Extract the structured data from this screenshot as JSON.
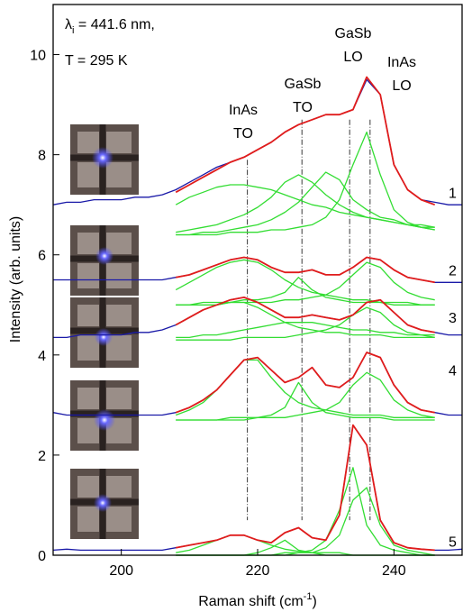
{
  "chart_data": {
    "type": "line",
    "x_label": {
      "main": "Raman shift (cm",
      "sup": "-1",
      "end": ")"
    },
    "y_label": "Intensity (arb. units)",
    "xlim": [
      190,
      250
    ],
    "ylim": [
      0,
      11
    ],
    "xticks": [
      200,
      220,
      240
    ],
    "yticks": [
      0,
      2,
      4,
      6,
      8,
      10
    ],
    "annotations": {
      "lambda": "λ",
      "lambda_sub": "i",
      "lambda_rest": " = 441.6 nm,",
      "temperature": "T = 295 K",
      "inas_to": [
        "InAs",
        "TO"
      ],
      "gasb_to": [
        "GaSb",
        "TO"
      ],
      "gasb_lo": [
        "GaSb",
        "LO"
      ],
      "inas_lo": [
        "InAs",
        "LO"
      ]
    },
    "reference_lines": [
      218.5,
      226.5,
      233.5,
      236.5
    ],
    "spectrum_labels": [
      "1",
      "2",
      "3",
      "4",
      "5"
    ],
    "x": [
      190,
      192,
      194,
      196,
      198,
      200,
      202,
      204,
      206,
      208,
      210,
      212,
      214,
      216,
      218,
      220,
      222,
      224,
      226,
      228,
      230,
      232,
      234,
      236,
      238,
      240,
      242,
      244,
      246,
      248,
      250
    ],
    "series": [
      {
        "color": "#1a1aa8",
        "values": [
          7.0,
          7.05,
          7.05,
          7.1,
          7.1,
          7.1,
          7.15,
          7.15,
          7.2,
          7.3,
          7.45,
          7.6,
          7.75,
          7.85,
          7.95,
          8.1,
          8.25,
          8.45,
          8.6,
          8.7,
          8.8,
          8.8,
          8.9,
          9.5,
          9.2,
          7.8,
          7.3,
          7.1,
          7.05,
          7.0,
          7.0
        ]
      },
      {
        "color": "#1a1aa8",
        "values": [
          5.5,
          5.5,
          5.5,
          5.5,
          5.5,
          5.5,
          5.5,
          5.5,
          5.5,
          5.55,
          5.6,
          5.7,
          5.8,
          5.9,
          5.95,
          5.9,
          5.75,
          5.65,
          5.65,
          5.7,
          5.6,
          5.6,
          5.75,
          5.95,
          5.9,
          5.7,
          5.55,
          5.5,
          5.45,
          5.45,
          5.45
        ]
      },
      {
        "color": "#1a1aa8",
        "values": [
          4.35,
          4.35,
          4.4,
          4.4,
          4.4,
          4.4,
          4.45,
          4.45,
          4.5,
          4.6,
          4.75,
          4.9,
          5.0,
          5.1,
          5.15,
          5.05,
          4.9,
          4.75,
          4.75,
          4.8,
          4.75,
          4.7,
          4.8,
          5.05,
          5.1,
          4.85,
          4.6,
          4.5,
          4.45,
          4.4,
          4.4
        ]
      },
      {
        "color": "#1a1aa8",
        "values": [
          2.85,
          2.8,
          2.8,
          2.8,
          2.8,
          2.8,
          2.8,
          2.8,
          2.8,
          2.85,
          2.95,
          3.1,
          3.3,
          3.6,
          3.9,
          3.95,
          3.7,
          3.45,
          3.55,
          3.75,
          3.4,
          3.35,
          3.55,
          4.05,
          3.95,
          3.4,
          3.05,
          2.9,
          2.85,
          2.8,
          2.8
        ]
      },
      {
        "color": "#1a1aa8",
        "values": [
          0.1,
          0.12,
          0.1,
          0.1,
          0.1,
          0.1,
          0.1,
          0.1,
          0.1,
          0.15,
          0.2,
          0.25,
          0.3,
          0.4,
          0.4,
          0.3,
          0.25,
          0.45,
          0.55,
          0.35,
          0.3,
          0.8,
          2.6,
          2.2,
          0.7,
          0.25,
          0.15,
          0.12,
          0.1,
          0.1,
          0.12
        ]
      },
      {
        "color": "#33dd33",
        "values": [
          null,
          null,
          null,
          null,
          null,
          null,
          null,
          null,
          null,
          7.0,
          7.15,
          7.25,
          7.35,
          7.4,
          7.4,
          7.35,
          7.3,
          7.2,
          7.1,
          7.0,
          6.95,
          6.85,
          6.8,
          6.75,
          6.7,
          6.65,
          6.6,
          6.6,
          6.55,
          null,
          null
        ]
      },
      {
        "color": "#33dd33",
        "values": [
          null,
          null,
          null,
          null,
          null,
          null,
          null,
          null,
          null,
          6.45,
          6.5,
          6.55,
          6.6,
          6.7,
          6.8,
          6.95,
          7.15,
          7.45,
          7.6,
          7.45,
          7.2,
          7.0,
          6.85,
          6.75,
          6.7,
          6.65,
          6.6,
          6.55,
          6.55,
          null,
          null
        ]
      },
      {
        "color": "#33dd33",
        "values": [
          null,
          null,
          null,
          null,
          null,
          null,
          null,
          null,
          null,
          6.4,
          6.4,
          6.45,
          6.45,
          6.5,
          6.55,
          6.6,
          6.7,
          6.85,
          7.05,
          7.35,
          7.65,
          7.5,
          7.1,
          6.9,
          6.75,
          6.7,
          6.6,
          6.55,
          6.5,
          null,
          null
        ]
      },
      {
        "color": "#33dd33",
        "values": [
          null,
          null,
          null,
          null,
          null,
          null,
          null,
          null,
          null,
          6.4,
          6.4,
          6.4,
          6.4,
          6.45,
          6.45,
          6.45,
          6.5,
          6.5,
          6.55,
          6.6,
          6.75,
          7.1,
          7.8,
          8.45,
          7.6,
          6.9,
          6.65,
          6.55,
          6.5,
          null,
          null
        ]
      },
      {
        "color": "#33dd33",
        "values": [
          null,
          null,
          null,
          null,
          null,
          null,
          null,
          null,
          null,
          5.3,
          5.45,
          5.6,
          5.75,
          5.85,
          5.9,
          5.85,
          5.7,
          5.5,
          5.35,
          5.25,
          5.2,
          5.15,
          5.1,
          5.1,
          5.05,
          5.05,
          5.05,
          5.0,
          5.0,
          null,
          null
        ]
      },
      {
        "color": "#33dd33",
        "values": [
          null,
          null,
          null,
          null,
          null,
          null,
          null,
          null,
          null,
          5.0,
          5.0,
          5.05,
          5.05,
          5.05,
          5.1,
          5.1,
          5.15,
          5.25,
          5.55,
          5.3,
          5.15,
          5.1,
          5.05,
          5.05,
          5.05,
          5.0,
          5.0,
          5.0,
          5.0,
          null,
          null
        ]
      },
      {
        "color": "#33dd33",
        "values": [
          null,
          null,
          null,
          null,
          null,
          null,
          null,
          null,
          null,
          5.0,
          5.0,
          5.0,
          5.0,
          5.05,
          5.05,
          5.05,
          5.05,
          5.1,
          5.1,
          5.15,
          5.2,
          5.35,
          5.6,
          5.85,
          5.75,
          5.45,
          5.25,
          5.15,
          5.1,
          null,
          null
        ]
      },
      {
        "color": "#33dd33",
        "values": [
          null,
          null,
          null,
          null,
          null,
          null,
          null,
          null,
          null,
          4.6,
          4.75,
          4.9,
          5.0,
          5.05,
          5.05,
          4.95,
          4.8,
          4.65,
          4.55,
          4.5,
          4.45,
          4.45,
          4.4,
          4.4,
          4.4,
          4.35,
          4.35,
          4.35,
          4.35,
          null,
          null
        ]
      },
      {
        "color": "#33dd33",
        "values": [
          null,
          null,
          null,
          null,
          null,
          null,
          null,
          null,
          null,
          4.35,
          4.35,
          4.4,
          4.4,
          4.45,
          4.5,
          4.55,
          4.6,
          4.65,
          4.65,
          4.65,
          4.6,
          4.55,
          4.5,
          4.5,
          4.45,
          4.45,
          4.4,
          4.4,
          4.4,
          null,
          null
        ]
      },
      {
        "color": "#33dd33",
        "values": [
          null,
          null,
          null,
          null,
          null,
          null,
          null,
          null,
          null,
          4.3,
          4.3,
          4.3,
          4.3,
          4.3,
          4.35,
          4.35,
          4.35,
          4.35,
          4.4,
          4.45,
          4.5,
          4.6,
          4.8,
          4.95,
          4.85,
          4.6,
          4.45,
          4.4,
          4.35,
          null,
          null
        ]
      },
      {
        "color": "#33dd33",
        "values": [
          null,
          null,
          null,
          null,
          null,
          null,
          null,
          null,
          null,
          2.8,
          2.9,
          3.05,
          3.3,
          3.6,
          3.9,
          3.9,
          3.55,
          3.25,
          3.05,
          2.95,
          2.9,
          2.85,
          2.8,
          2.8,
          2.8,
          2.75,
          2.75,
          2.75,
          2.75,
          null,
          null
        ]
      },
      {
        "color": "#33dd33",
        "values": [
          null,
          null,
          null,
          null,
          null,
          null,
          null,
          null,
          null,
          2.7,
          2.7,
          2.7,
          2.7,
          2.75,
          2.75,
          2.75,
          2.8,
          2.95,
          3.45,
          3.05,
          2.85,
          2.8,
          2.75,
          2.75,
          2.75,
          2.7,
          2.7,
          2.7,
          2.7,
          null,
          null
        ]
      },
      {
        "color": "#33dd33",
        "values": [
          null,
          null,
          null,
          null,
          null,
          null,
          null,
          null,
          null,
          2.7,
          2.7,
          2.7,
          2.7,
          2.7,
          2.7,
          2.75,
          2.75,
          2.75,
          2.8,
          2.85,
          2.9,
          3.05,
          3.4,
          3.65,
          3.5,
          3.1,
          2.9,
          2.8,
          2.75,
          null,
          null
        ]
      },
      {
        "color": "#33dd33",
        "values": [
          null,
          null,
          null,
          null,
          null,
          null,
          null,
          null,
          null,
          0.05,
          0.1,
          0.2,
          0.3,
          0.4,
          0.4,
          0.3,
          0.2,
          0.12,
          0.08,
          0.05,
          0.05,
          0.05,
          0,
          0,
          0,
          0,
          0,
          0,
          0,
          null,
          null
        ]
      },
      {
        "color": "#33dd33",
        "values": [
          null,
          null,
          null,
          null,
          null,
          null,
          null,
          null,
          null,
          0,
          0,
          0,
          0,
          0,
          0,
          0.05,
          0.15,
          0.3,
          0.1,
          0.05,
          0,
          0,
          0,
          0,
          0,
          0,
          0,
          0,
          0,
          null,
          null
        ]
      },
      {
        "color": "#33dd33",
        "values": [
          null,
          null,
          null,
          null,
          null,
          null,
          null,
          null,
          null,
          0,
          0,
          0,
          0,
          0,
          0,
          0,
          0,
          0.05,
          0.05,
          0.1,
          0.3,
          0.9,
          1.75,
          0.6,
          0.2,
          0.1,
          0.05,
          0,
          0,
          null,
          null
        ]
      },
      {
        "color": "#33dd33",
        "values": [
          null,
          null,
          null,
          null,
          null,
          null,
          null,
          null,
          null,
          0,
          0,
          0,
          0,
          0,
          0,
          0,
          0,
          0,
          0.05,
          0.05,
          0.15,
          0.4,
          1.1,
          1.35,
          0.6,
          0.2,
          0.1,
          0.05,
          0,
          null,
          null
        ]
      },
      {
        "color": "#e01c1c",
        "values": [
          null,
          null,
          null,
          null,
          null,
          null,
          null,
          null,
          null,
          7.25,
          7.4,
          7.55,
          7.7,
          7.85,
          7.95,
          8.1,
          8.25,
          8.45,
          8.6,
          8.7,
          8.8,
          8.8,
          8.9,
          9.55,
          9.2,
          7.8,
          7.3,
          7.1,
          7.0,
          null,
          null
        ]
      },
      {
        "color": "#e01c1c",
        "values": [
          null,
          null,
          null,
          null,
          null,
          null,
          null,
          null,
          null,
          5.55,
          5.6,
          5.7,
          5.8,
          5.9,
          5.95,
          5.9,
          5.75,
          5.65,
          5.65,
          5.7,
          5.6,
          5.6,
          5.75,
          5.95,
          5.9,
          5.7,
          5.55,
          5.5,
          5.45,
          null,
          null
        ]
      },
      {
        "color": "#e01c1c",
        "values": [
          null,
          null,
          null,
          null,
          null,
          null,
          null,
          null,
          null,
          4.6,
          4.75,
          4.9,
          5.0,
          5.1,
          5.15,
          5.05,
          4.9,
          4.75,
          4.75,
          4.8,
          4.75,
          4.7,
          4.8,
          5.05,
          5.1,
          4.85,
          4.6,
          4.5,
          4.45,
          null,
          null
        ]
      },
      {
        "color": "#e01c1c",
        "values": [
          null,
          null,
          null,
          null,
          null,
          null,
          null,
          null,
          null,
          2.85,
          2.95,
          3.1,
          3.3,
          3.6,
          3.9,
          3.95,
          3.7,
          3.45,
          3.55,
          3.75,
          3.4,
          3.35,
          3.55,
          4.05,
          3.95,
          3.4,
          3.05,
          2.9,
          2.85,
          null,
          null
        ]
      },
      {
        "color": "#e01c1c",
        "values": [
          null,
          null,
          null,
          null,
          null,
          null,
          null,
          null,
          null,
          0.15,
          0.2,
          0.25,
          0.3,
          0.4,
          0.4,
          0.3,
          0.25,
          0.45,
          0.55,
          0.35,
          0.3,
          0.8,
          2.6,
          2.2,
          0.7,
          0.25,
          0.15,
          0.12,
          0.1,
          null,
          null
        ]
      }
    ]
  }
}
